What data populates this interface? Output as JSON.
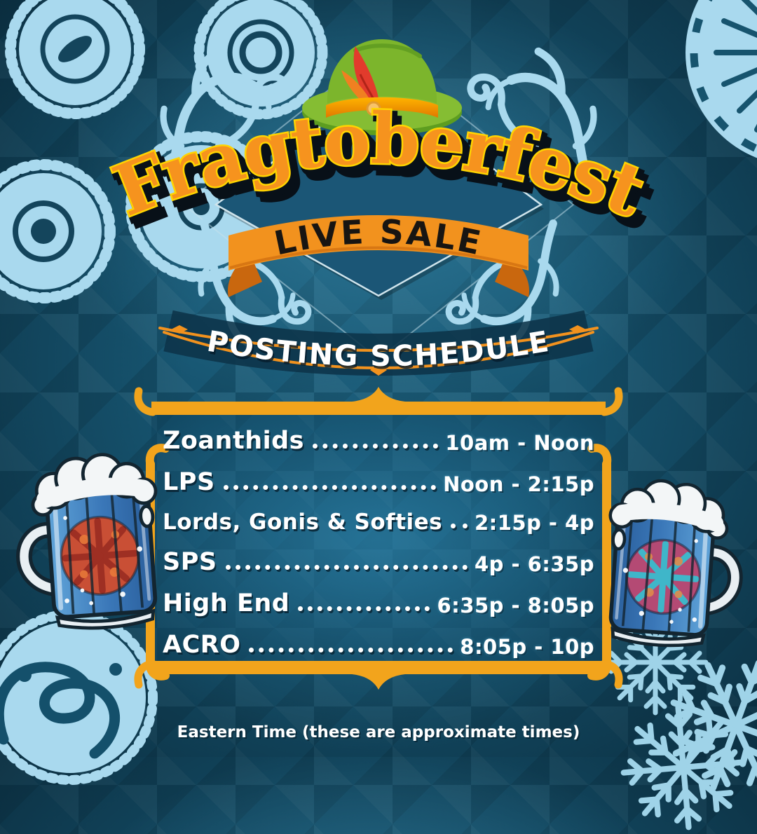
{
  "event": {
    "title": "Fragtoberfest",
    "subtitle_banner": "LIVE SALE",
    "section_heading": "POSTING SCHEDULE",
    "footer_note": "Eastern Time (these are approximate times)"
  },
  "schedule": {
    "rows": [
      {
        "category": "Zoanthids",
        "time": "10am - Noon"
      },
      {
        "category": "LPS",
        "time": "Noon - 2:15p"
      },
      {
        "category": "Lords, Gonis & Softies",
        "time": "2:15p - 4p"
      },
      {
        "category": "SPS",
        "time": "4p - 6:35p"
      },
      {
        "category": "High End",
        "time": "6:35p - 8:05p"
      },
      {
        "category": "ACRO",
        "time": "8:05p - 10p"
      }
    ]
  },
  "decorations": {
    "hat_icon": "alpine-hat-icon",
    "left_mug_icon": "beer-mug-coral-icon",
    "right_mug_icon": "beer-mug-coral-icon",
    "corner_icons": [
      "zoanthid-colony-icon",
      "disc-coral-icon",
      "brain-coral-icon",
      "clove-polyp-icon"
    ],
    "branch_icon": "blue-coral-branch-icon"
  },
  "colors": {
    "background": "#175672",
    "accent_orange": "#f2921e",
    "frame_gold": "#f2a41c",
    "coral_light_blue": "#a9d9ee",
    "title_fill": "#f6931e",
    "title_outline": "#ffd400",
    "text_white": "#ffffff",
    "dark_navy": "#0d3349"
  }
}
